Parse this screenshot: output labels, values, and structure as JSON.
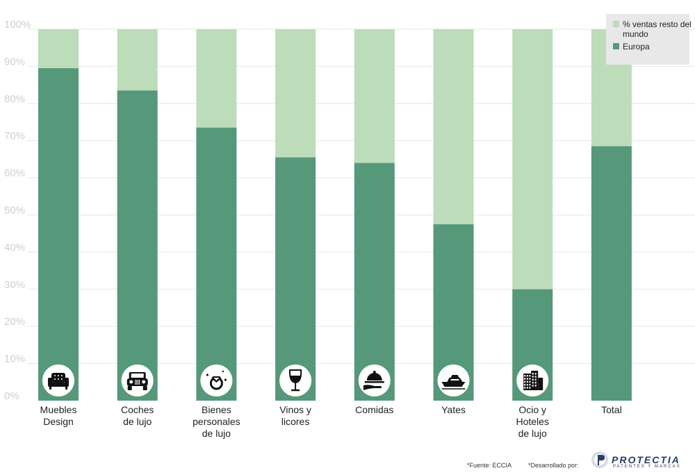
{
  "chart_data": {
    "type": "bar",
    "stacked": true,
    "categories": [
      [
        "Muebles",
        "Design"
      ],
      [
        "Coches",
        "de lujo"
      ],
      [
        "Bienes",
        "personales",
        "de lujo"
      ],
      [
        "Vinos y",
        "licores"
      ],
      [
        "Comidas"
      ],
      [
        "Yates"
      ],
      [
        "Ocio y",
        "Hoteles",
        "de lujo"
      ],
      [
        "Total"
      ]
    ],
    "category_icons": [
      "armchair-icon",
      "vintage-car-icon",
      "diamond-ring-icon",
      "wine-glass-icon",
      "cloche-icon",
      "yacht-icon",
      "hotel-building-icon",
      null
    ],
    "series": [
      {
        "name": "Europa",
        "values": [
          89.5,
          83.5,
          73.5,
          65.5,
          64,
          47.5,
          30,
          68.5
        ],
        "color": "#55987a"
      },
      {
        "name": "% ventas resto del mundo",
        "values": [
          10.5,
          16.5,
          26.5,
          34.5,
          36,
          52.5,
          70,
          31.5
        ],
        "color": "#bddcba"
      }
    ],
    "yticks": [
      "0%",
      "10%",
      "20%",
      "30%",
      "40%",
      "50%",
      "60%",
      "70%",
      "80%",
      "90%",
      "100%"
    ],
    "ylim": [
      0,
      100
    ],
    "grid": true,
    "legend": {
      "placement": "top-right"
    },
    "title": "",
    "xlabel": "",
    "ylabel": ""
  },
  "legend_labels": {
    "rest": "% ventas resto del mundo",
    "europe": "Europa"
  },
  "footer": {
    "source": "*Fuente: ECCIA",
    "developed": "*Desarrollado por:"
  },
  "logo": {
    "name": "PROTECTIA",
    "tagline": "PATENTES Y MARCAS"
  }
}
